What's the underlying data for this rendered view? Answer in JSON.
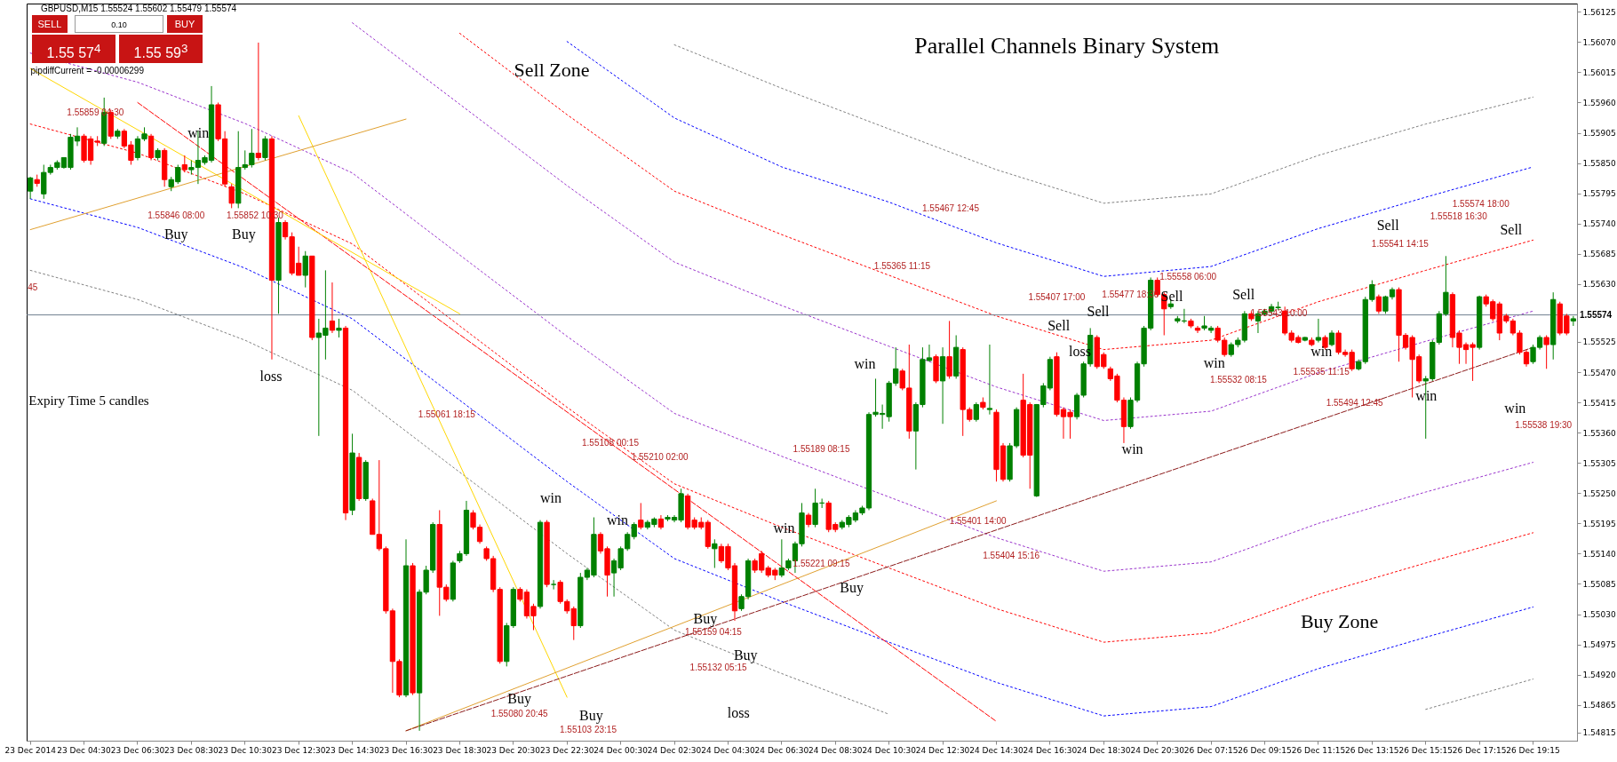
{
  "chart_data": {
    "type": "candlestick",
    "title": "Parallel Channels Binary System",
    "categories": [
      "23 Dec 2014",
      null,
      null,
      null,
      null,
      null,
      null,
      null,
      "23 Dec 04:30",
      null,
      null,
      null,
      null,
      null,
      null,
      null,
      "23 Dec 06:30",
      null,
      null,
      null,
      null,
      null,
      null,
      null,
      "23 Dec 08:30",
      null,
      null,
      null,
      null,
      null,
      null,
      null,
      "23 Dec 10:30",
      null,
      null,
      null,
      null,
      null,
      null,
      null,
      "23 Dec 12:30",
      null,
      null,
      null,
      null,
      null,
      null,
      null,
      "23 Dec 14:30",
      null,
      null,
      null,
      null,
      null,
      null,
      null,
      "23 Dec 16:30",
      null,
      null,
      null,
      null,
      null,
      null,
      null,
      "23 Dec 18:30",
      null,
      null,
      null,
      null,
      null,
      null,
      null,
      "23 Dec 20:30",
      null,
      null,
      null,
      null,
      null,
      null,
      null,
      "23 Dec 22:30",
      null,
      null,
      null,
      null,
      null,
      null,
      null,
      "24 Dec 00:30",
      null,
      null,
      null,
      null,
      null,
      null,
      null,
      "24 Dec 02:30",
      null,
      null,
      null,
      null,
      null,
      null,
      null,
      "24 Dec 04:30",
      null,
      null,
      null,
      null,
      null,
      null,
      null,
      "24 Dec 06:30",
      null,
      null,
      null,
      null,
      null,
      null,
      null,
      "24 Dec 08:30",
      null,
      null,
      null,
      null,
      null,
      null,
      null,
      "24 Dec 10:30",
      null,
      null,
      null,
      null,
      null,
      null,
      null,
      "24 Dec 12:30",
      null,
      null,
      null,
      null,
      null,
      null,
      null,
      "24 Dec 14:30",
      null,
      null,
      null,
      null,
      null,
      null,
      null,
      "24 Dec 16:30",
      null,
      null,
      null,
      null,
      null,
      null,
      null,
      "24 Dec 18:30",
      null,
      null,
      null,
      null,
      null,
      null,
      null,
      "24 Dec 20:30",
      null,
      null,
      null,
      null,
      null,
      null,
      null,
      "26 Dec 07:15",
      null,
      null,
      null,
      null,
      null,
      null,
      null,
      "26 Dec 09:15",
      null,
      null,
      null,
      null,
      null,
      null,
      null,
      "26 Dec 11:15",
      null,
      null,
      null,
      null,
      null,
      null,
      null,
      "26 Dec 13:15",
      null,
      null,
      null,
      null,
      null,
      null,
      null,
      "26 Dec 15:15",
      null,
      null,
      null,
      null,
      null,
      null,
      null,
      "26 Dec 17:15",
      null,
      null,
      null,
      null,
      null,
      null,
      null,
      "26 Dec 19:15",
      null,
      null,
      null,
      null,
      null,
      null
    ],
    "ohlc": [
      [
        1.55799,
        1.55825,
        1.55785,
        1.55823
      ],
      [
        1.5582,
        1.55829,
        1.55807,
        1.55813
      ],
      [
        1.55794,
        1.55847,
        1.55785,
        1.55833
      ],
      [
        1.55833,
        1.55847,
        1.55829,
        1.55842
      ],
      [
        1.55842,
        1.55855,
        1.55838,
        1.55851
      ],
      [
        1.55842,
        1.5586,
        1.5584,
        1.5586
      ],
      [
        1.55842,
        1.55903,
        1.55838,
        1.55897
      ],
      [
        1.5589,
        1.55915,
        1.55881,
        1.55899
      ],
      [
        1.55899,
        1.55903,
        1.55851,
        1.55855
      ],
      [
        1.55894,
        1.55899,
        1.55847,
        1.55855
      ],
      [
        1.5589,
        1.55899,
        1.55881,
        1.55888
      ],
      [
        1.55886,
        1.55969,
        1.55881,
        1.55942
      ],
      [
        1.55942,
        1.55947,
        1.55894,
        1.55899
      ],
      [
        1.55899,
        1.55912,
        1.55894,
        1.55908
      ],
      [
        1.55908,
        1.55912,
        1.55877,
        1.55881
      ],
      [
        1.55883,
        1.5589,
        1.55847,
        1.55855
      ],
      [
        1.5586,
        1.55899,
        1.55855,
        1.55894
      ],
      [
        1.55894,
        1.55915,
        1.5589,
        1.55903
      ],
      [
        1.55899,
        1.55903,
        1.55855,
        1.5586
      ],
      [
        1.5586,
        1.55877,
        1.55855,
        1.55873
      ],
      [
        1.55873,
        1.55877,
        1.55807,
        1.5582
      ],
      [
        1.55807,
        1.55825,
        1.55799,
        1.5582
      ],
      [
        1.55816,
        1.55847,
        1.55812,
        1.55842
      ],
      [
        1.55847,
        1.55864,
        1.55833,
        1.55838
      ],
      [
        1.55838,
        1.55855,
        1.55829,
        1.55842
      ],
      [
        1.55842,
        1.55909,
        1.55812,
        1.55855
      ],
      [
        1.55851,
        1.55864,
        1.55847,
        1.5586
      ],
      [
        1.55855,
        1.5599,
        1.55851,
        1.55956
      ],
      [
        1.55956,
        1.5596,
        1.5589,
        1.55894
      ],
      [
        1.55894,
        1.55908,
        1.55807,
        1.55812
      ],
      [
        1.55807,
        1.55812,
        1.55768,
        1.55777
      ],
      [
        1.55777,
        1.55908,
        1.55768,
        1.55842
      ],
      [
        1.55842,
        1.55873,
        1.55838,
        1.55847
      ],
      [
        1.55847,
        1.55912,
        1.55842,
        1.55868
      ],
      [
        1.55868,
        1.56069,
        1.55855,
        1.5586
      ],
      [
        1.5586,
        1.55899,
        1.55855,
        1.55894
      ],
      [
        1.55894,
        1.55899,
        1.55493,
        1.55637
      ],
      [
        1.55637,
        1.55751,
        1.55576,
        1.55742
      ],
      [
        1.55742,
        1.55746,
        1.55711,
        1.55716
      ],
      [
        1.55716,
        1.55724,
        1.55646,
        1.5565
      ],
      [
        1.55668,
        1.55698,
        1.55646,
        1.55646
      ],
      [
        1.55646,
        1.5569,
        1.55624,
        1.55681
      ],
      [
        1.55681,
        1.55681,
        1.55528,
        1.55533
      ],
      [
        1.55533,
        1.55567,
        1.55354,
        1.55541
      ],
      [
        1.55537,
        1.55655,
        1.55493,
        1.5555
      ],
      [
        1.55563,
        1.55633,
        1.55541,
        1.55546
      ],
      [
        1.55546,
        1.55567,
        1.55533,
        1.5555
      ],
      [
        1.5555,
        1.55554,
        1.55201,
        1.55214
      ],
      [
        1.55219,
        1.55358,
        1.5521,
        1.55323
      ],
      [
        1.55315,
        1.55323,
        1.55236,
        1.5524
      ],
      [
        1.5524,
        1.5531,
        1.55236,
        1.55306
      ],
      [
        1.55236,
        1.5524,
        1.55175,
        1.55175
      ],
      [
        1.55175,
        1.5531,
        1.55145,
        1.55149
      ],
      [
        1.55149,
        1.55153,
        1.55031,
        1.55036
      ],
      [
        1.55036,
        1.5504,
        1.54887,
        1.54944
      ],
      [
        1.54944,
        1.54948,
        1.54879,
        1.54883
      ],
      [
        1.54883,
        1.55166,
        1.54879,
        1.55118
      ],
      [
        1.55118,
        1.55123,
        1.54883,
        1.54887
      ],
      [
        1.54887,
        1.55075,
        1.54818,
        1.5507
      ],
      [
        1.5507,
        1.55118,
        1.55066,
        1.5511
      ],
      [
        1.5511,
        1.55197,
        1.55105,
        1.55193
      ],
      [
        1.55193,
        1.55219,
        1.55027,
        1.55079
      ],
      [
        1.55079,
        1.55084,
        1.55053,
        1.55057
      ],
      [
        1.55057,
        1.55127,
        1.55053,
        1.55123
      ],
      [
        1.55127,
        1.55145,
        1.55123,
        1.5514
      ],
      [
        1.5514,
        1.55236,
        1.55136,
        1.55219
      ],
      [
        1.55214,
        1.55219,
        1.55184,
        1.55188
      ],
      [
        1.55188,
        1.55193,
        1.55158,
        1.55162
      ],
      [
        1.55149,
        1.55153,
        1.55127,
        1.55131
      ],
      [
        1.55131,
        1.55136,
        1.5507,
        1.55075
      ],
      [
        1.55075,
        1.55079,
        1.5494,
        1.54944
      ],
      [
        1.54944,
        1.55014,
        1.54935,
        1.55009
      ],
      [
        1.55009,
        1.55079,
        1.55005,
        1.55075
      ],
      [
        1.55075,
        1.55079,
        1.55053,
        1.55057
      ],
      [
        1.5507,
        1.55075,
        1.55022,
        1.55027
      ],
      [
        1.55044,
        1.55049,
        1.55001,
        1.55027
      ],
      [
        1.55044,
        1.55201,
        1.5504,
        1.55197
      ],
      [
        1.55197,
        1.55201,
        1.55079,
        1.55084
      ],
      [
        1.55084,
        1.55092,
        1.55075,
        1.55084
      ],
      [
        1.55088,
        1.55092,
        1.55049,
        1.55053
      ],
      [
        1.55053,
        1.55057,
        1.55031,
        1.55036
      ],
      [
        1.5504,
        1.55044,
        1.54983,
        1.55009
      ],
      [
        1.55009,
        1.55105,
        1.55005,
        1.55097
      ],
      [
        1.55097,
        1.55114,
        1.55092,
        1.5511
      ],
      [
        1.55101,
        1.55206,
        1.55097,
        1.55175
      ],
      [
        1.55175,
        1.55179,
        1.5514,
        1.55145
      ],
      [
        1.55149,
        1.55153,
        1.55062,
        1.55101
      ],
      [
        1.55105,
        1.55131,
        1.55062,
        1.55127
      ],
      [
        1.55114,
        1.55153,
        1.5511,
        1.55149
      ],
      [
        1.55149,
        1.55179,
        1.55145,
        1.55175
      ],
      [
        1.55171,
        1.55197,
        1.55166,
        1.55193
      ],
      [
        1.55201,
        1.55232,
        1.55184,
        1.55188
      ],
      [
        1.55188,
        1.55201,
        1.55184,
        1.55197
      ],
      [
        1.55193,
        1.55206,
        1.55188,
        1.55203
      ],
      [
        1.55203,
        1.5521,
        1.55184,
        1.55188
      ],
      [
        1.55203,
        1.5521,
        1.55199,
        1.55206
      ],
      [
        1.55201,
        1.5521,
        1.55197,
        1.55206
      ],
      [
        1.55201,
        1.55258,
        1.55197,
        1.55249
      ],
      [
        1.55245,
        1.55249,
        1.55184,
        1.55188
      ],
      [
        1.55201,
        1.55206,
        1.55184,
        1.55188
      ],
      [
        1.55197,
        1.55206,
        1.55184,
        1.55188
      ],
      [
        1.55197,
        1.55201,
        1.55149,
        1.55153
      ],
      [
        1.55149,
        1.55166,
        1.55114,
        1.55158
      ],
      [
        1.55153,
        1.55158,
        1.55123,
        1.55127
      ],
      [
        1.55153,
        1.55158,
        1.5511,
        1.55114
      ],
      [
        1.55118,
        1.55123,
        1.55018,
        1.55036
      ],
      [
        1.5504,
        1.55066,
        1.55036,
        1.55062
      ],
      [
        1.55062,
        1.55131,
        1.55057,
        1.55127
      ],
      [
        1.55127,
        1.55131,
        1.55105,
        1.5511
      ],
      [
        1.5514,
        1.55145,
        1.55105,
        1.5511
      ],
      [
        1.55114,
        1.55118,
        1.55097,
        1.55101
      ],
      [
        1.5511,
        1.55114,
        1.55092,
        1.55101
      ],
      [
        1.55101,
        1.55166,
        1.55097,
        1.55114
      ],
      [
        1.55114,
        1.55131,
        1.5511,
        1.55127
      ],
      [
        1.55127,
        1.55162,
        1.55105,
        1.55158
      ],
      [
        1.55158,
        1.55232,
        1.55153,
        1.55214
      ],
      [
        1.5521,
        1.55214,
        1.55188,
        1.55193
      ],
      [
        1.55193,
        1.55258,
        1.55188,
        1.55232
      ],
      [
        1.55232,
        1.5524,
        1.55223,
        1.55232
      ],
      [
        1.55232,
        1.55236,
        1.55179,
        1.55184
      ],
      [
        1.55193,
        1.55197,
        1.55179,
        1.55184
      ],
      [
        1.55188,
        1.55201,
        1.55184,
        1.55197
      ],
      [
        1.55193,
        1.5521,
        1.55188,
        1.55206
      ],
      [
        1.55201,
        1.55219,
        1.55197,
        1.55214
      ],
      [
        1.55214,
        1.55227,
        1.5521,
        1.55223
      ],
      [
        1.55223,
        1.55397,
        1.55219,
        1.55393
      ],
      [
        1.55393,
        1.55458,
        1.55389,
        1.55397
      ],
      [
        1.55393,
        1.55411,
        1.55367,
        1.55395
      ],
      [
        1.55389,
        1.55454,
        1.5538,
        1.5545
      ],
      [
        1.5545,
        1.55515,
        1.55445,
        1.55476
      ],
      [
        1.55472,
        1.55476,
        1.55437,
        1.55441
      ],
      [
        1.55441,
        1.5552,
        1.55349,
        1.55363
      ],
      [
        1.55363,
        1.55415,
        1.55293,
        1.55411
      ],
      [
        1.55411,
        1.55515,
        1.55406,
        1.55493
      ],
      [
        1.55491,
        1.5552,
        1.55489,
        1.55496
      ],
      [
        1.55498,
        1.55502,
        1.5545,
        1.55454
      ],
      [
        1.55454,
        1.55515,
        1.55376,
        1.55498
      ],
      [
        1.55498,
        1.55563,
        1.55458,
        1.55463
      ],
      [
        1.55463,
        1.55537,
        1.55458,
        1.55515
      ],
      [
        1.55511,
        1.55515,
        1.55354,
        1.55402
      ],
      [
        1.55402,
        1.55406,
        1.5538,
        1.55384
      ],
      [
        1.55384,
        1.55415,
        1.5538,
        1.55411
      ],
      [
        1.55415,
        1.55424,
        1.55402,
        1.55406
      ],
      [
        1.55402,
        1.5552,
        1.55393,
        1.55404
      ],
      [
        1.55397,
        1.55402,
        1.55271,
        1.55293
      ],
      [
        1.55336,
        1.55341,
        1.55271,
        1.55275
      ],
      [
        1.55275,
        1.55341,
        1.55271,
        1.55336
      ],
      [
        1.55336,
        1.55406,
        1.55332,
        1.55402
      ],
      [
        1.55419,
        1.55467,
        1.55315,
        1.55319
      ],
      [
        1.55411,
        1.55415,
        1.55258,
        1.55319
      ],
      [
        1.55245,
        1.55412,
        1.55243,
        1.55411
      ],
      [
        1.55411,
        1.5545,
        1.55406,
        1.55445
      ],
      [
        1.55441,
        1.55498,
        1.55437,
        1.55493
      ],
      [
        1.55498,
        1.55506,
        1.55389,
        1.55393
      ],
      [
        1.55402,
        1.55406,
        1.55349,
        1.55389
      ],
      [
        1.55397,
        1.55402,
        1.55349,
        1.55389
      ],
      [
        1.55389,
        1.55432,
        1.55384,
        1.55428
      ],
      [
        1.55428,
        1.55489,
        1.55424,
        1.55485
      ],
      [
        1.55485,
        1.5555,
        1.5548,
        1.55537
      ],
      [
        1.55533,
        1.55537,
        1.55476,
        1.5548
      ],
      [
        1.55502,
        1.55506,
        1.55476,
        1.5548
      ],
      [
        1.55476,
        1.5548,
        1.55454,
        1.55458
      ],
      [
        1.55463,
        1.55467,
        1.55415,
        1.55419
      ],
      [
        1.55419,
        1.55424,
        1.55341,
        1.55371
      ],
      [
        1.55371,
        1.55424,
        1.55367,
        1.55419
      ],
      [
        1.55419,
        1.55489,
        1.55415,
        1.55485
      ],
      [
        1.55485,
        1.55554,
        1.5548,
        1.5555
      ],
      [
        1.5555,
        1.55642,
        1.55546,
        1.55637
      ],
      [
        1.55637,
        1.55642,
        1.55607,
        1.55611
      ],
      [
        1.55611,
        1.55615,
        1.55537,
        1.55585
      ],
      [
        1.55589,
        1.55602,
        1.55585,
        1.55594
      ],
      [
        1.55563,
        1.55572,
        1.55559,
        1.55567
      ],
      [
        1.55563,
        1.55585,
        1.55559,
        1.55563
      ],
      [
        1.55563,
        1.55567,
        1.5555,
        1.55554
      ],
      [
        1.5555,
        1.55554,
        1.55541,
        1.55546
      ],
      [
        1.5555,
        1.55572,
        1.55546,
        1.55554
      ],
      [
        1.55546,
        1.55554,
        1.55541,
        1.5555
      ],
      [
        1.5555,
        1.55554,
        1.55524,
        1.55528
      ],
      [
        1.55528,
        1.55533,
        1.55498,
        1.55502
      ],
      [
        1.55502,
        1.55524,
        1.55498,
        1.5552
      ],
      [
        1.5552,
        1.55533,
        1.55515,
        1.55528
      ],
      [
        1.55528,
        1.55581,
        1.55524,
        1.55576
      ],
      [
        1.55576,
        1.55581,
        1.55563,
        1.55567
      ],
      [
        1.55563,
        1.55581,
        1.55541,
        1.55576
      ],
      [
        1.55576,
        1.55585,
        1.55572,
        1.55581
      ],
      [
        1.55581,
        1.55594,
        1.55576,
        1.55589
      ],
      [
        1.55587,
        1.55598,
        1.55583,
        1.55588
      ],
      [
        1.55581,
        1.55589,
        1.55537,
        1.55541
      ],
      [
        1.55541,
        1.55546,
        1.55524,
        1.55528
      ],
      [
        1.55533,
        1.55537,
        1.55522,
        1.55524
      ],
      [
        1.55528,
        1.55534,
        1.55526,
        1.55533
      ],
      [
        1.55528,
        1.55533,
        1.55517,
        1.5552
      ],
      [
        1.55528,
        1.55567,
        1.55524,
        1.55533
      ],
      [
        1.55533,
        1.55537,
        1.55511,
        1.55515
      ],
      [
        1.5552,
        1.55546,
        1.55517,
        1.55541
      ],
      [
        1.55541,
        1.55546,
        1.55502,
        1.55506
      ],
      [
        1.55506,
        1.55511,
        1.55498,
        1.55502
      ],
      [
        1.55506,
        1.55511,
        1.55472,
        1.55476
      ],
      [
        1.55476,
        1.55493,
        1.55473,
        1.55489
      ],
      [
        1.55489,
        1.55607,
        1.55485,
        1.55602
      ],
      [
        1.55602,
        1.55637,
        1.55598,
        1.55629
      ],
      [
        1.55607,
        1.55611,
        1.55576,
        1.55581
      ],
      [
        1.55581,
        1.55609,
        1.55576,
        1.55607
      ],
      [
        1.55607,
        1.55624,
        1.55602,
        1.5562
      ],
      [
        1.5562,
        1.55624,
        1.55489,
        1.55537
      ],
      [
        1.55537,
        1.55541,
        1.55511,
        1.55515
      ],
      [
        1.55533,
        1.55537,
        1.55424,
        1.55493
      ],
      [
        1.55498,
        1.55502,
        1.5545,
        1.55454
      ],
      [
        1.55454,
        1.55463,
        1.55349,
        1.55458
      ],
      [
        1.55458,
        1.55528,
        1.55454,
        1.55524
      ],
      [
        1.55524,
        1.55581,
        1.5552,
        1.55576
      ],
      [
        1.55576,
        1.55681,
        1.55572,
        1.55615
      ],
      [
        1.55611,
        1.55615,
        1.55515,
        1.55533
      ],
      [
        1.55541,
        1.55546,
        1.55485,
        1.55515
      ],
      [
        1.5552,
        1.55524,
        1.55485,
        1.55511
      ],
      [
        1.5552,
        1.55524,
        1.55454,
        1.55515
      ],
      [
        1.55515,
        1.55609,
        1.55511,
        1.55607
      ],
      [
        1.55607,
        1.55611,
        1.55589,
        1.55594
      ],
      [
        1.55598,
        1.55602,
        1.55563,
        1.55567
      ],
      [
        1.55594,
        1.55598,
        1.55528,
        1.55541
      ],
      [
        1.55572,
        1.55576,
        1.55559,
        1.55563
      ],
      [
        1.55563,
        1.55567,
        1.55537,
        1.55541
      ],
      [
        1.55541,
        1.55546,
        1.55502,
        1.55506
      ],
      [
        1.55506,
        1.55511,
        1.5548,
        1.55485
      ],
      [
        1.55489,
        1.5552,
        1.55485,
        1.55515
      ],
      [
        1.55515,
        1.55537,
        1.55511,
        1.55533
      ],
      [
        1.55533,
        1.55537,
        1.55476,
        1.5552
      ],
      [
        1.5552,
        1.55615,
        1.55493,
        1.55602
      ],
      [
        1.55594,
        1.55598,
        1.55537,
        1.55541
      ],
      [
        1.55572,
        1.55576,
        1.55537,
        1.55541
      ],
      [
        1.55563,
        1.55572,
        1.55554,
        1.55567
      ]
    ],
    "colors": [
      "#008000",
      "#ff0000",
      "#008000",
      "#008000",
      "#008000",
      "#008000",
      "#008000",
      "#008000",
      "#ff0000",
      "#ff0000",
      "#ff0000",
      "#008000",
      "#ff0000",
      "#008000",
      "#ff0000",
      "#ff0000",
      "#008000",
      "#008000",
      "#ff0000",
      "#008000",
      "#ff0000",
      "#008000",
      "#008000",
      "#ff0000",
      "#008000",
      "#008000",
      "#008000",
      "#008000",
      "#ff0000",
      "#ff0000",
      "#ff0000",
      "#008000",
      "#008000",
      "#008000",
      "#ff0000",
      "#008000",
      "#ff0000",
      "#008000",
      "#ff0000",
      "#ff0000",
      "#ff0000",
      "#008000",
      "#ff0000",
      "#008000",
      "#008000",
      "#ff0000",
      "#008000",
      "#ff0000",
      "#008000",
      "#ff0000",
      "#008000",
      "#ff0000",
      "#ff0000",
      "#ff0000",
      "#ff0000",
      "#ff0000",
      "#008000",
      "#ff0000",
      "#008000",
      "#008000",
      "#008000",
      "#ff0000",
      "#ff0000",
      "#008000",
      "#008000",
      "#008000",
      "#ff0000",
      "#ff0000",
      "#ff0000",
      "#ff0000",
      "#ff0000",
      "#008000",
      "#008000",
      "#ff0000",
      "#ff0000",
      "#ff0000",
      "#008000",
      "#ff0000",
      "#008000",
      "#ff0000",
      "#ff0000",
      "#ff0000",
      "#008000",
      "#008000",
      "#008000",
      "#ff0000",
      "#ff0000",
      "#008000",
      "#008000",
      "#008000",
      "#008000",
      "#ff0000",
      "#008000",
      "#008000",
      "#ff0000",
      "#008000",
      "#008000",
      "#008000",
      "#ff0000",
      "#ff0000",
      "#ff0000",
      "#ff0000",
      "#008000",
      "#ff0000",
      "#ff0000",
      "#ff0000",
      "#008000",
      "#008000",
      "#ff0000",
      "#ff0000",
      "#ff0000",
      "#ff0000",
      "#008000",
      "#008000",
      "#008000",
      "#008000",
      "#ff0000",
      "#008000",
      "#008000",
      "#ff0000",
      "#ff0000",
      "#008000",
      "#008000",
      "#008000",
      "#008000",
      "#008000",
      "#008000",
      "#008000",
      "#008000",
      "#008000",
      "#ff0000",
      "#ff0000",
      "#008000",
      "#008000",
      "#008000",
      "#ff0000",
      "#008000",
      "#ff0000",
      "#008000",
      "#ff0000",
      "#ff0000",
      "#008000",
      "#ff0000",
      "#008000",
      "#ff0000",
      "#ff0000",
      "#008000",
      "#008000",
      "#ff0000",
      "#ff0000",
      "#008000",
      "#008000",
      "#008000",
      "#ff0000",
      "#ff0000",
      "#ff0000",
      "#008000",
      "#008000",
      "#008000",
      "#ff0000",
      "#ff0000",
      "#ff0000",
      "#ff0000",
      "#ff0000",
      "#008000",
      "#008000",
      "#008000",
      "#008000",
      "#ff0000",
      "#ff0000",
      "#008000",
      "#008000",
      "#008000",
      "#ff0000",
      "#ff0000",
      "#008000",
      "#008000",
      "#ff0000",
      "#ff0000",
      "#008000",
      "#008000",
      "#008000",
      "#ff0000",
      "#008000",
      "#008000",
      "#008000",
      "#008000",
      "#ff0000",
      "#ff0000",
      "#ff0000",
      "#008000",
      "#ff0000",
      "#008000",
      "#ff0000",
      "#008000",
      "#ff0000",
      "#ff0000",
      "#ff0000",
      "#008000",
      "#008000",
      "#008000",
      "#ff0000",
      "#008000",
      "#008000",
      "#ff0000",
      "#ff0000",
      "#ff0000",
      "#ff0000",
      "#008000",
      "#008000",
      "#008000",
      "#008000",
      "#ff0000",
      "#ff0000",
      "#ff0000",
      "#ff0000",
      "#008000",
      "#ff0000",
      "#ff0000",
      "#ff0000",
      "#ff0000",
      "#ff0000",
      "#ff0000",
      "#ff0000",
      "#008000",
      "#008000",
      "#ff0000",
      "#008000",
      "#ff0000",
      "#ff0000",
      "#008000"
    ],
    "ylim": [
      1.548,
      1.5614
    ],
    "yticks": [
      {
        "value": 1.56125,
        "label": "1.56125"
      },
      {
        "value": 1.5607,
        "label": "1.56070"
      },
      {
        "value": 1.56015,
        "label": "1.56015"
      },
      {
        "value": 1.5596,
        "label": "1.55960"
      },
      {
        "value": 1.55905,
        "label": "1.55905"
      },
      {
        "value": 1.5585,
        "label": "1.55850"
      },
      {
        "value": 1.55795,
        "label": "1.55795"
      },
      {
        "value": 1.5574,
        "label": "1.55740"
      },
      {
        "value": 1.55685,
        "label": "1.55685"
      },
      {
        "value": 1.5563,
        "label": "1.55630"
      },
      {
        "value": 1.55525,
        "label": "1.55525"
      },
      {
        "value": 1.5547,
        "label": "1.55470"
      },
      {
        "value": 1.55415,
        "label": "1.55415"
      },
      {
        "value": 1.5536,
        "label": "1.55360"
      },
      {
        "value": 1.55305,
        "label": "1.55305"
      },
      {
        "value": 1.5525,
        "label": "1.55250"
      },
      {
        "value": 1.55195,
        "label": "1.55195"
      },
      {
        "value": 1.5514,
        "label": "1.55140"
      },
      {
        "value": 1.55085,
        "label": "1.55085"
      },
      {
        "value": 1.5503,
        "label": "1.55030"
      },
      {
        "value": 1.54975,
        "label": "1.54975"
      },
      {
        "value": 1.5492,
        "label": "1.54920"
      },
      {
        "value": 1.54865,
        "label": "1.54865"
      },
      {
        "value": 1.54815,
        "label": "1.54815"
      }
    ],
    "series": [
      {
        "type": "line",
        "color": "#808080",
        "line_style": "dotted",
        "x": [
          "23 Dec 2014",
          "23 Dec 06:30",
          "23 Dec 10:30",
          "23 Dec 14:30",
          "23 Dec 18:30",
          "23 Dec 22:30",
          "24 Dec 02:30",
          "24 Dec 06:30",
          "24 Dec 10:30",
          "24 Dec 14:30",
          "24 Dec 18:30",
          "26 Dec 07:15",
          "26 Dec 11:15",
          "26 Dec 15:15",
          "26 Dec 19:15"
        ],
        "values": [
          null,
          null,
          null,
          null,
          null,
          null,
          1.56065,
          1.55986,
          1.55912,
          1.55838,
          1.55777,
          1.55794,
          1.55864,
          1.55921,
          1.5597
        ]
      },
      {
        "type": "line",
        "color": "#0000ff",
        "line_style": "dotted",
        "x": [
          "23 Dec 2014",
          "23 Dec 06:30",
          "23 Dec 10:30",
          "23 Dec 14:30",
          "23 Dec 18:30",
          "23 Dec 22:30",
          "24 Dec 02:30",
          "24 Dec 06:30",
          "24 Dec 10:30",
          "24 Dec 14:30",
          "24 Dec 18:30",
          "26 Dec 07:15",
          "26 Dec 11:15",
          "26 Dec 15:15",
          "26 Dec 19:15"
        ],
        "values": [
          null,
          null,
          null,
          null,
          null,
          1.56071,
          1.55932,
          1.55843,
          1.55779,
          1.55705,
          1.55644,
          1.55662,
          1.55731,
          1.55788,
          1.55843
        ]
      },
      {
        "type": "line",
        "color": "#ff0000",
        "line_style": "dotted",
        "x": [
          "23 Dec 2014",
          "23 Dec 06:30",
          "23 Dec 10:30",
          "23 Dec 14:30",
          "23 Dec 18:30",
          "23 Dec 22:30",
          "24 Dec 02:30",
          "24 Dec 06:30",
          "24 Dec 10:30",
          "24 Dec 14:30",
          "24 Dec 18:30",
          "26 Dec 07:15",
          "26 Dec 11:15",
          "26 Dec 15:15",
          "26 Dec 19:15"
        ],
        "values": [
          null,
          null,
          null,
          null,
          1.56086,
          1.55938,
          1.55799,
          1.5572,
          1.55646,
          1.55572,
          1.55511,
          1.55528,
          1.55598,
          1.55655,
          1.5571
        ]
      },
      {
        "type": "line",
        "color": "#9932cc",
        "line_style": "dotted",
        "x": [
          "23 Dec 2014",
          "23 Dec 06:30",
          "23 Dec 10:30",
          "23 Dec 14:30",
          "23 Dec 18:30",
          "23 Dec 22:30",
          "24 Dec 02:30",
          "24 Dec 06:30",
          "24 Dec 10:30",
          "24 Dec 14:30",
          "24 Dec 18:30",
          "26 Dec 07:15",
          "26 Dec 11:15",
          "26 Dec 15:15",
          "26 Dec 19:15"
        ],
        "values": [
          null,
          null,
          null,
          1.56105,
          1.55957,
          1.55809,
          1.5567,
          1.55591,
          1.55517,
          1.55443,
          1.55382,
          1.55399,
          1.55469,
          1.55526,
          1.55581
        ]
      },
      {
        "type": "line",
        "color": "#9932cc",
        "line_style": "dotted",
        "x": [
          "23 Dec 2014",
          "23 Dec 06:30",
          "23 Dec 10:30",
          "23 Dec 14:30",
          "23 Dec 18:30",
          "23 Dec 22:30",
          "24 Dec 02:30",
          "24 Dec 06:30",
          "24 Dec 10:30",
          "24 Dec 14:30",
          "24 Dec 18:30",
          "26 Dec 07:15",
          "26 Dec 11:15",
          "26 Dec 15:15",
          "26 Dec 19:15"
        ],
        "values": [
          1.5605,
          1.55997,
          1.55922,
          1.55832,
          1.55683,
          1.55535,
          1.55395,
          1.55317,
          1.55243,
          1.55169,
          1.55108,
          1.55125,
          1.55195,
          1.55252,
          1.55306
        ]
      },
      {
        "type": "line",
        "color": "#ff0000",
        "line_style": "dotted",
        "x": [
          "23 Dec 2014",
          "23 Dec 06:30",
          "23 Dec 10:30",
          "23 Dec 14:30",
          "23 Dec 18:30",
          "23 Dec 22:30",
          "24 Dec 02:30",
          "24 Dec 06:30",
          "24 Dec 10:30",
          "24 Dec 14:30",
          "24 Dec 18:30",
          "26 Dec 07:15",
          "26 Dec 11:15",
          "26 Dec 15:15",
          "26 Dec 19:15"
        ],
        "values": [
          1.55921,
          1.55868,
          1.55794,
          1.55703,
          1.55554,
          1.55406,
          1.55267,
          1.55188,
          1.55114,
          1.5504,
          1.54979,
          1.54996,
          1.55066,
          1.55123,
          1.55178
        ]
      },
      {
        "type": "line",
        "color": "#0000ff",
        "line_style": "dotted",
        "x": [
          "23 Dec 2014",
          "23 Dec 06:30",
          "23 Dec 10:30",
          "23 Dec 14:30",
          "23 Dec 18:30",
          "23 Dec 22:30",
          "24 Dec 02:30",
          "24 Dec 06:30",
          "24 Dec 10:30",
          "24 Dec 14:30",
          "24 Dec 18:30",
          "26 Dec 07:15",
          "26 Dec 11:15",
          "26 Dec 15:15",
          "26 Dec 19:15"
        ],
        "values": [
          1.55785,
          1.55733,
          1.55659,
          1.55567,
          1.55419,
          1.55271,
          1.55131,
          1.55053,
          1.54979,
          1.54906,
          1.54845,
          1.54862,
          1.54931,
          1.54988,
          1.55043
        ]
      },
      {
        "type": "line",
        "color": "#808080",
        "line_style": "dotted",
        "x": [
          "23 Dec 2014",
          "23 Dec 06:30",
          "23 Dec 10:30",
          "23 Dec 14:30",
          "23 Dec 18:30",
          "23 Dec 22:30",
          "24 Dec 02:30",
          "24 Dec 06:30",
          "24 Dec 10:30",
          "24 Dec 14:30",
          "24 Dec 18:30",
          "26 Dec 07:15",
          "26 Dec 11:15",
          "26 Dec 15:15",
          "26 Dec 19:15"
        ],
        "values": [
          1.55655,
          1.55602,
          1.55528,
          1.55437,
          1.55288,
          1.5514,
          1.55001,
          1.54922,
          1.54848,
          null,
          null,
          null,
          null,
          1.54857,
          1.54912
        ]
      },
      {
        "type": "line",
        "color": "#ff0000",
        "line_style": "dashed",
        "x": [
          "23 Dec 06:30",
          "24 Dec 14:30"
        ],
        "values": [
          1.5596,
          1.54835
        ]
      },
      {
        "type": "line",
        "color": "#ffd700",
        "line_style": "solid",
        "x": [
          "23 Dec 12:30",
          "23 Dec 22:30"
        ],
        "values": [
          1.55936,
          1.54879
        ]
      },
      {
        "type": "line",
        "color": "#e0a030",
        "line_style": "solid",
        "x": [
          "23 Dec 16:30",
          "24 Dec 14:30"
        ],
        "values": [
          1.54818,
          1.55236
        ]
      },
      {
        "type": "line",
        "color": "#ffd700",
        "line_style": "solid",
        "x": [
          "23 Dec 2014",
          "23 Dec 18:30"
        ],
        "values": [
          1.56022,
          1.55576
        ]
      },
      {
        "type": "line",
        "color": "#e0a030",
        "line_style": "solid",
        "x": [
          "23 Dec 2014",
          "23 Dec 16:30"
        ],
        "values": [
          1.55729,
          1.5593
        ]
      },
      {
        "type": "line",
        "color": "#8b1a1a",
        "line_style": "dashed",
        "x": [
          "23 Dec 16:30",
          "26 Dec 19:15"
        ],
        "values": [
          1.54818,
          1.55515
        ]
      }
    ],
    "ref_lines": [
      {
        "axis": "y",
        "value": 1.55574,
        "label": "1.55574",
        "color": "#708090"
      }
    ],
    "annotations": [
      "GBPUSD,M15  1.55524 1.55602 1.55479 1.55574",
      "pipdiffCurrent = -0.00006299",
      "45",
      "Sell Zone",
      "Buy Zone",
      "Expiry Time 5 candles",
      "1.55859 04:30",
      "win",
      "1.55846 08:00",
      "Buy",
      "Buy",
      "1.55852 10:30",
      "loss",
      "1.55061 18:15",
      "1.55108 00:15",
      "1.55210 02:00",
      "win",
      "win",
      "1.55189 08:15",
      "win",
      "win",
      "1.55221 09:15",
      "Buy",
      "Buy",
      "1.55159 04:15",
      "1.55132 05:15",
      "Buy",
      "loss",
      "Buy",
      "1.55080 20:45",
      "Buy",
      "1.55103 23:15",
      "1.55467 12:45",
      "1.55365 11:15",
      "1.55407 17:00",
      "1.55477 18:30",
      "1.55558 06:00",
      "Sell",
      "Sell",
      "Sell",
      "loss",
      "1.55401 14:00",
      "1.55404 15:16",
      "win",
      "win",
      "1.55532 08:15",
      "Sell",
      "1.55543 10:00",
      "win",
      "1.55535 11:15",
      "Sell",
      "1.55541 14:15",
      "1.55518 16:30",
      "1.55574 18:00",
      "Sell",
      "1.55494 12:45",
      "win",
      "win",
      "1.55538 19:30",
      "SELL",
      "0.10",
      "BUY",
      "1.55 57$^{4}$",
      "1.55 59$^{3}$"
    ]
  }
}
